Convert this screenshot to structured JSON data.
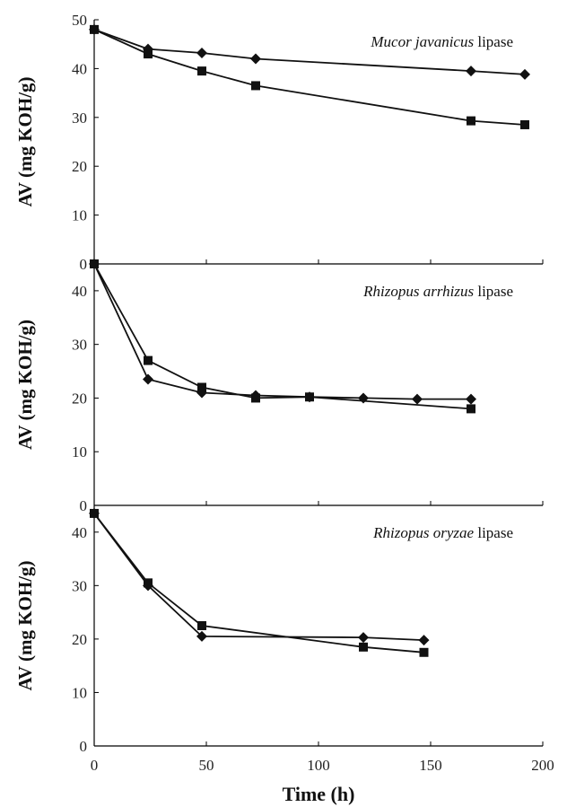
{
  "chart_data": {
    "type": "line",
    "xlabel": "Time (h)",
    "xlim": [
      0,
      200
    ],
    "xticks": [
      0,
      50,
      100,
      150,
      200
    ],
    "series_color": "#111111",
    "panels": [
      {
        "annotation_species": "Mucor javanicus",
        "annotation_suffix": "lipase",
        "ylabel": "AV (mg KOH/g)",
        "ylim": [
          0,
          50
        ],
        "yticks": [
          0,
          10,
          20,
          30,
          40,
          50
        ],
        "series": [
          {
            "marker": "diamond",
            "x": [
              0,
              24,
              48,
              72,
              168,
              192
            ],
            "y": [
              48,
              44,
              43.2,
              42,
              39.5,
              38.8
            ]
          },
          {
            "marker": "square",
            "x": [
              0,
              24,
              48,
              72,
              168,
              192
            ],
            "y": [
              48,
              43,
              39.5,
              36.5,
              29.3,
              28.5
            ]
          }
        ]
      },
      {
        "annotation_species": "Rhizopus arrhizus",
        "annotation_suffix": "lipase",
        "ylabel": "AV (mg KOH/g)",
        "ylim": [
          0,
          45
        ],
        "yticks": [
          0,
          10,
          20,
          30,
          40
        ],
        "series": [
          {
            "marker": "diamond",
            "x": [
              0,
              24,
              48,
              72,
              96,
              120,
              144,
              168
            ],
            "y": [
              45,
              23.5,
              21,
              20.5,
              20.2,
              20,
              19.8,
              19.8
            ]
          },
          {
            "marker": "square",
            "x": [
              0,
              24,
              48,
              72,
              96,
              168
            ],
            "y": [
              45,
              27,
              22,
              20,
              20.2,
              18
            ]
          }
        ]
      },
      {
        "annotation_species": "Rhizopus oryzae",
        "annotation_suffix": "lipase",
        "ylabel": "AV (mg KOH/g)",
        "ylim": [
          0,
          45
        ],
        "yticks": [
          0,
          10,
          20,
          30,
          40
        ],
        "series": [
          {
            "marker": "diamond",
            "x": [
              0,
              24,
              48,
              120,
              147
            ],
            "y": [
              43.5,
              30,
              20.5,
              20.3,
              19.8
            ]
          },
          {
            "marker": "square",
            "x": [
              0,
              24,
              48,
              120,
              147
            ],
            "y": [
              43.5,
              30.5,
              22.5,
              18.5,
              17.5
            ]
          }
        ]
      }
    ]
  }
}
